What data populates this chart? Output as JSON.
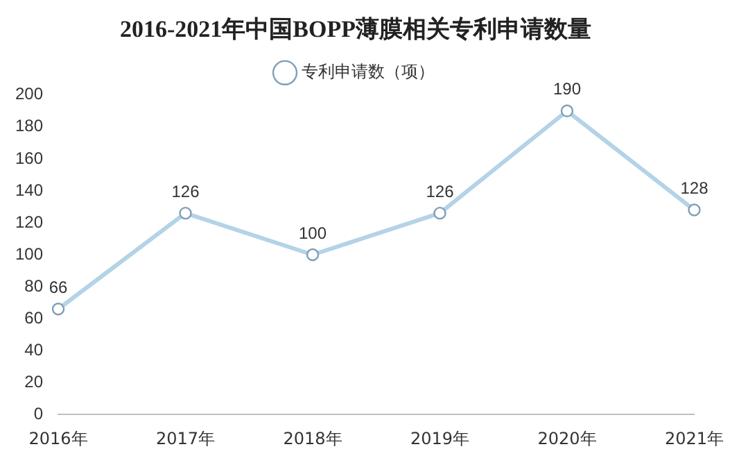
{
  "chart_data": {
    "type": "line",
    "title": "2016-2021年中国BOPP薄膜相关专利申请数量",
    "categories": [
      "2016年",
      "2017年",
      "2018年",
      "2019年",
      "2020年",
      "2021年"
    ],
    "series": [
      {
        "name": "专利申请数（项）",
        "color": "#b4d3e6",
        "values": [
          66,
          126,
          100,
          126,
          190,
          128
        ]
      }
    ],
    "ylim": [
      0,
      200
    ],
    "yticks": [
      0,
      20,
      40,
      60,
      80,
      100,
      120,
      140,
      160,
      180,
      200
    ],
    "grid": false,
    "legend": "top",
    "marker": "circle",
    "line_style": "solid",
    "data_labels": true
  }
}
